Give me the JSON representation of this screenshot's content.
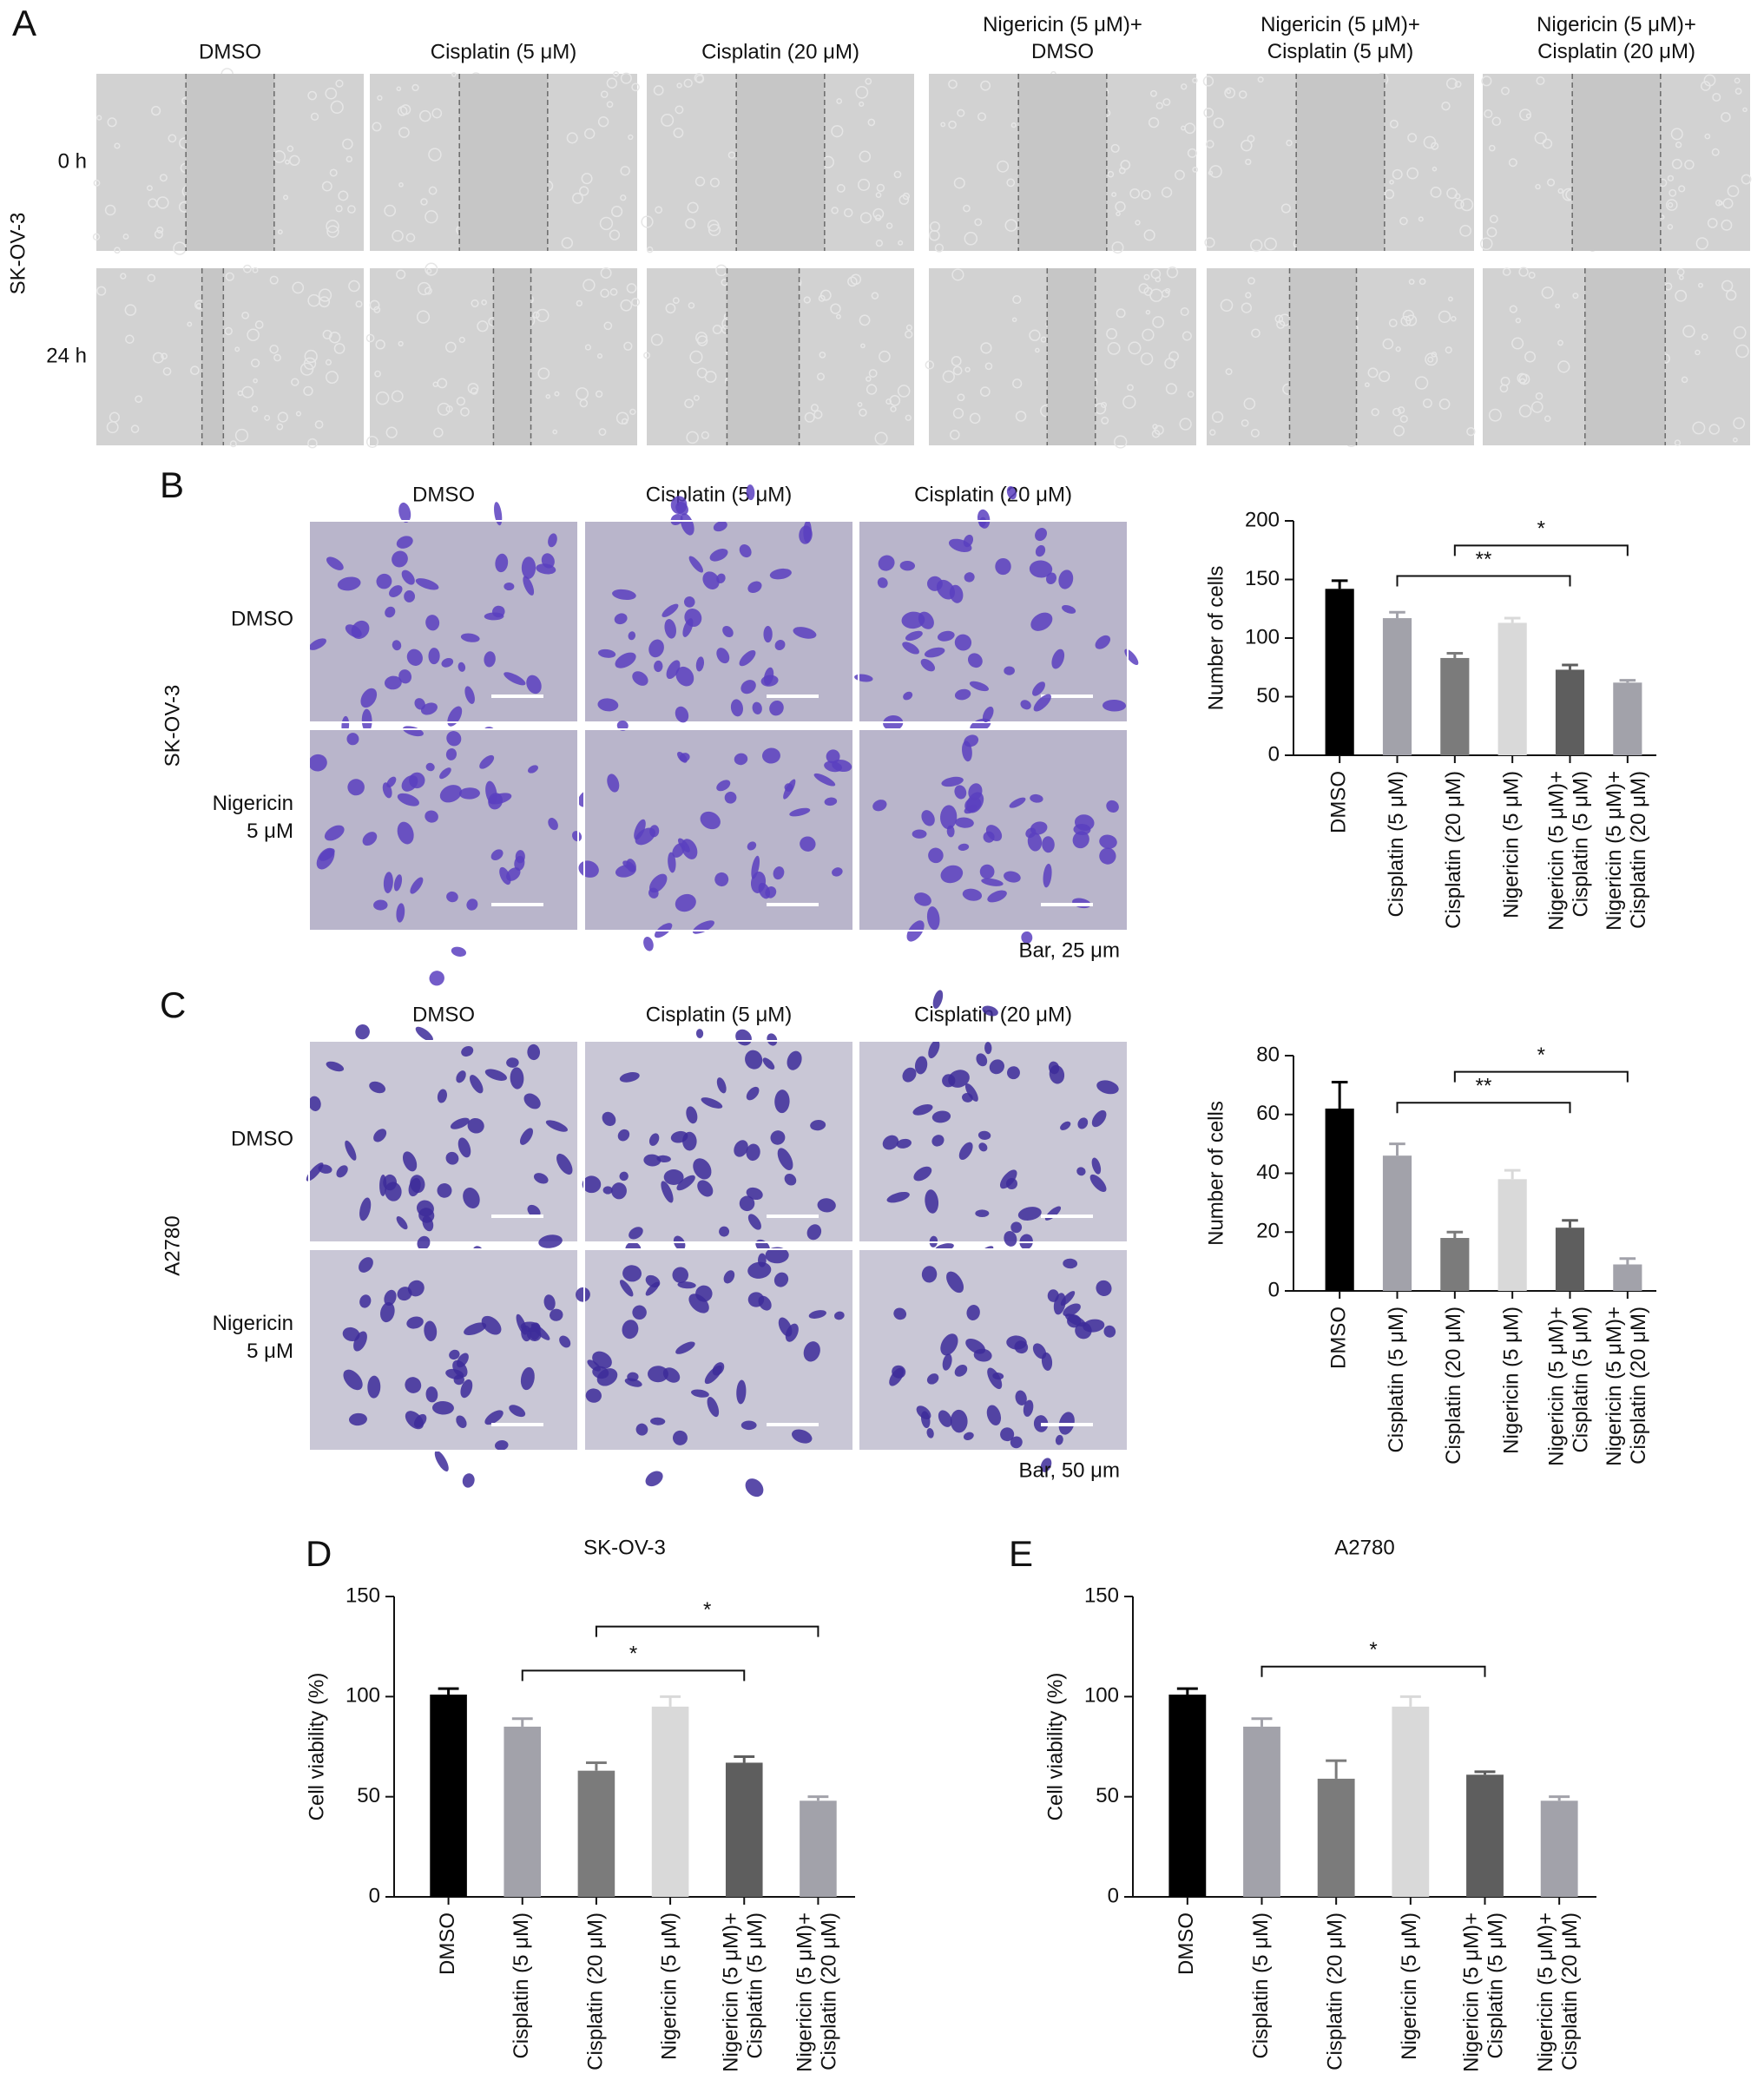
{
  "panel_a": {
    "letter": "A",
    "cell_line": "SK-OV-3",
    "columns": [
      "DMSO",
      "Cisplatin (5 μM)",
      "Cisplatin (20 μM)",
      "Nigericin (5 μM)+\nDMSO",
      "Nigericin (5 μM)+\nCisplatin (5 μM)",
      "Nigericin (5 μM)+\nCisplatin (20 μM)"
    ],
    "rows": [
      "0 h",
      "24 h"
    ]
  },
  "panel_b": {
    "letter": "B",
    "cell_line": "SK-OV-3",
    "columns": [
      "DMSO",
      "Cisplatin (5 μM)",
      "Cisplatin (20 μM)"
    ],
    "rows": [
      "DMSO",
      "Nigericin\n5 μM"
    ],
    "scale_bar": "Bar, 25 μm"
  },
  "panel_c": {
    "letter": "C",
    "cell_line": "A2780",
    "columns": [
      "DMSO",
      "Cisplatin (5 μM)",
      "Cisplatin (20 μM)"
    ],
    "rows": [
      "DMSO",
      "Nigericin\n5 μM"
    ],
    "scale_bar": "Bar, 50 μm"
  },
  "panel_d": {
    "letter": "D"
  },
  "panel_e": {
    "letter": "E"
  },
  "chart_data": [
    {
      "type": "bar",
      "y_label": "Number of cells",
      "categories": [
        "DMSO",
        "Cisplatin (5 μM)",
        "Cisplatin (20 μM)",
        "Nigericin (5 μM)",
        "Nigericin (5 μM)+\nCisplatin (5 μM)",
        "Nigericin (5 μM)+\nCisplatin (20 μM)"
      ],
      "values": [
        142,
        117,
        83,
        113,
        73,
        62
      ],
      "errors": [
        7,
        5,
        4,
        4,
        4,
        2
      ],
      "colors": [
        "#000000",
        "#a2a2aa",
        "#7b7b7b",
        "#d9d9d9",
        "#5e5e5e",
        "#a2a2aa"
      ],
      "ylim": [
        0,
        200
      ],
      "yticks": [
        0,
        50,
        100,
        150,
        200
      ],
      "annotations": [
        {
          "text": "**",
          "from": 1,
          "to": 4,
          "y": 153
        },
        {
          "text": "*",
          "from": 2,
          "to": 5,
          "y": 179
        }
      ]
    },
    {
      "type": "bar",
      "y_label": "Number of cells",
      "categories": [
        "DMSO",
        "Cisplatin (5 μM)",
        "Cisplatin (20 μM)",
        "Nigericin (5 μM)",
        "Nigericin (5 μM)+\nCisplatin (5 μM)",
        "Nigericin (5 μM)+\nCisplatin (20 μM)"
      ],
      "values": [
        62,
        46,
        18,
        38,
        21.5,
        9
      ],
      "errors": [
        9,
        4,
        2,
        3,
        2.5,
        2
      ],
      "colors": [
        "#000000",
        "#a2a2aa",
        "#7b7b7b",
        "#d9d9d9",
        "#5e5e5e",
        "#a2a2aa"
      ],
      "ylim": [
        0,
        80
      ],
      "yticks": [
        0,
        20,
        40,
        60,
        80
      ],
      "annotations": [
        {
          "text": "**",
          "from": 1,
          "to": 4,
          "y": 64
        },
        {
          "text": "*",
          "from": 2,
          "to": 5,
          "y": 74.5
        }
      ]
    },
    {
      "type": "bar",
      "title": "SK-OV-3",
      "y_label": "Cell viability (%)",
      "categories": [
        "DMSO",
        "Cisplatin (5 μM)",
        "Cisplatin (20 μM)",
        "Nigericin (5 μM)",
        "Nigericin (5 μM)+\nCisplatin (5 μM)",
        "Nigericin (5 μM)+\nCisplatin (20 μM)"
      ],
      "values": [
        101,
        85,
        63,
        95,
        67,
        48
      ],
      "errors": [
        3,
        4,
        4,
        5,
        3,
        2
      ],
      "colors": [
        "#000000",
        "#a2a2aa",
        "#7b7b7b",
        "#d9d9d9",
        "#5e5e5e",
        "#a2a2aa"
      ],
      "ylim": [
        0,
        150
      ],
      "yticks": [
        0,
        50,
        100,
        150
      ],
      "annotations": [
        {
          "text": "*",
          "from": 1,
          "to": 4,
          "y": 113
        },
        {
          "text": "*",
          "from": 2,
          "to": 5,
          "y": 135
        }
      ]
    },
    {
      "type": "bar",
      "title": "A2780",
      "y_label": "Cell viability (%)",
      "categories": [
        "DMSO",
        "Cisplatin (5 μM)",
        "Cisplatin (20 μM)",
        "Nigericin (5 μM)",
        "Nigericin (5 μM)+\nCisplatin (5 μM)",
        "Nigericin (5 μM)+\nCisplatin (20 μM)"
      ],
      "values": [
        101,
        85,
        59,
        95,
        61,
        48
      ],
      "errors": [
        3,
        4,
        9,
        5,
        1.5,
        2
      ],
      "colors": [
        "#000000",
        "#a2a2aa",
        "#7b7b7b",
        "#d9d9d9",
        "#5e5e5e",
        "#a2a2aa"
      ],
      "ylim": [
        0,
        150
      ],
      "yticks": [
        0,
        50,
        100,
        150
      ],
      "annotations": [
        {
          "text": "*",
          "from": 1,
          "to": 4,
          "y": 115
        }
      ]
    }
  ]
}
